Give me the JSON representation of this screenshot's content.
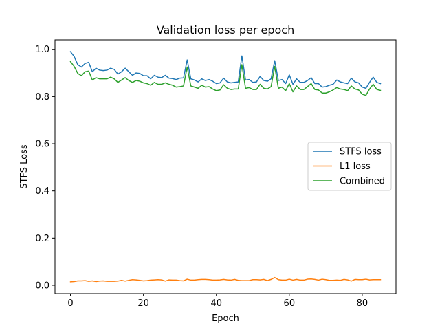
{
  "chart_data": {
    "type": "line",
    "title": "Validation loss per epoch",
    "xlabel": "Epoch",
    "ylabel": "STFS Loss",
    "xlim": [
      -4.25,
      89.25
    ],
    "ylim": [
      -0.035,
      1.04
    ],
    "xticks": [
      0,
      20,
      40,
      60,
      80
    ],
    "yticks": [
      0.0,
      0.2,
      0.4,
      0.6,
      0.8,
      1.0
    ],
    "xtick_labels": [
      "0",
      "20",
      "40",
      "60",
      "80"
    ],
    "ytick_labels": [
      "0.0",
      "0.2",
      "0.4",
      "0.6",
      "0.8",
      "1.0"
    ],
    "grid": false,
    "legend_position": "center-right",
    "series": [
      {
        "name": "STFS loss",
        "color": "#1f77b4",
        "values": [
          0.99,
          0.97,
          0.935,
          0.925,
          0.94,
          0.945,
          0.905,
          0.92,
          0.912,
          0.91,
          0.912,
          0.92,
          0.915,
          0.895,
          0.905,
          0.92,
          0.905,
          0.89,
          0.9,
          0.898,
          0.888,
          0.888,
          0.875,
          0.89,
          0.882,
          0.88,
          0.89,
          0.878,
          0.876,
          0.872,
          0.878,
          0.879,
          0.955,
          0.875,
          0.87,
          0.862,
          0.875,
          0.868,
          0.872,
          0.865,
          0.855,
          0.858,
          0.878,
          0.862,
          0.858,
          0.86,
          0.862,
          0.972,
          0.87,
          0.872,
          0.86,
          0.862,
          0.885,
          0.868,
          0.865,
          0.875,
          0.952,
          0.868,
          0.872,
          0.855,
          0.892,
          0.852,
          0.875,
          0.86,
          0.86,
          0.868,
          0.88,
          0.855,
          0.855,
          0.84,
          0.842,
          0.848,
          0.852,
          0.87,
          0.862,
          0.858,
          0.855,
          0.878,
          0.862,
          0.858,
          0.84,
          0.835,
          0.86,
          0.882,
          0.86,
          0.855
        ]
      },
      {
        "name": "L1 loss",
        "color": "#ff7f0e",
        "values": [
          0.015,
          0.016,
          0.019,
          0.019,
          0.02,
          0.017,
          0.019,
          0.016,
          0.018,
          0.019,
          0.017,
          0.017,
          0.017,
          0.018,
          0.021,
          0.018,
          0.021,
          0.024,
          0.023,
          0.021,
          0.019,
          0.02,
          0.022,
          0.023,
          0.024,
          0.023,
          0.018,
          0.023,
          0.022,
          0.022,
          0.02,
          0.019,
          0.026,
          0.022,
          0.022,
          0.024,
          0.025,
          0.025,
          0.024,
          0.022,
          0.022,
          0.023,
          0.025,
          0.023,
          0.022,
          0.025,
          0.021,
          0.02,
          0.02,
          0.02,
          0.024,
          0.024,
          0.023,
          0.025,
          0.02,
          0.025,
          0.033,
          0.024,
          0.022,
          0.022,
          0.026,
          0.022,
          0.025,
          0.022,
          0.022,
          0.026,
          0.027,
          0.025,
          0.022,
          0.026,
          0.024,
          0.021,
          0.021,
          0.022,
          0.021,
          0.025,
          0.023,
          0.018,
          0.025,
          0.024,
          0.024,
          0.026,
          0.023,
          0.024,
          0.024,
          0.024
        ]
      },
      {
        "name": "Combined",
        "color": "#2ca02c",
        "values": [
          0.948,
          0.928,
          0.898,
          0.888,
          0.905,
          0.908,
          0.87,
          0.88,
          0.875,
          0.875,
          0.875,
          0.882,
          0.875,
          0.86,
          0.87,
          0.88,
          0.868,
          0.86,
          0.868,
          0.865,
          0.858,
          0.855,
          0.848,
          0.86,
          0.852,
          0.852,
          0.858,
          0.852,
          0.848,
          0.84,
          0.842,
          0.845,
          0.925,
          0.845,
          0.84,
          0.835,
          0.848,
          0.84,
          0.842,
          0.832,
          0.825,
          0.828,
          0.85,
          0.835,
          0.83,
          0.832,
          0.832,
          0.935,
          0.835,
          0.838,
          0.83,
          0.83,
          0.852,
          0.835,
          0.832,
          0.842,
          0.928,
          0.835,
          0.84,
          0.825,
          0.855,
          0.82,
          0.845,
          0.83,
          0.83,
          0.842,
          0.855,
          0.83,
          0.828,
          0.815,
          0.815,
          0.82,
          0.828,
          0.838,
          0.832,
          0.83,
          0.825,
          0.845,
          0.832,
          0.828,
          0.81,
          0.805,
          0.832,
          0.852,
          0.83,
          0.826
        ]
      }
    ]
  }
}
